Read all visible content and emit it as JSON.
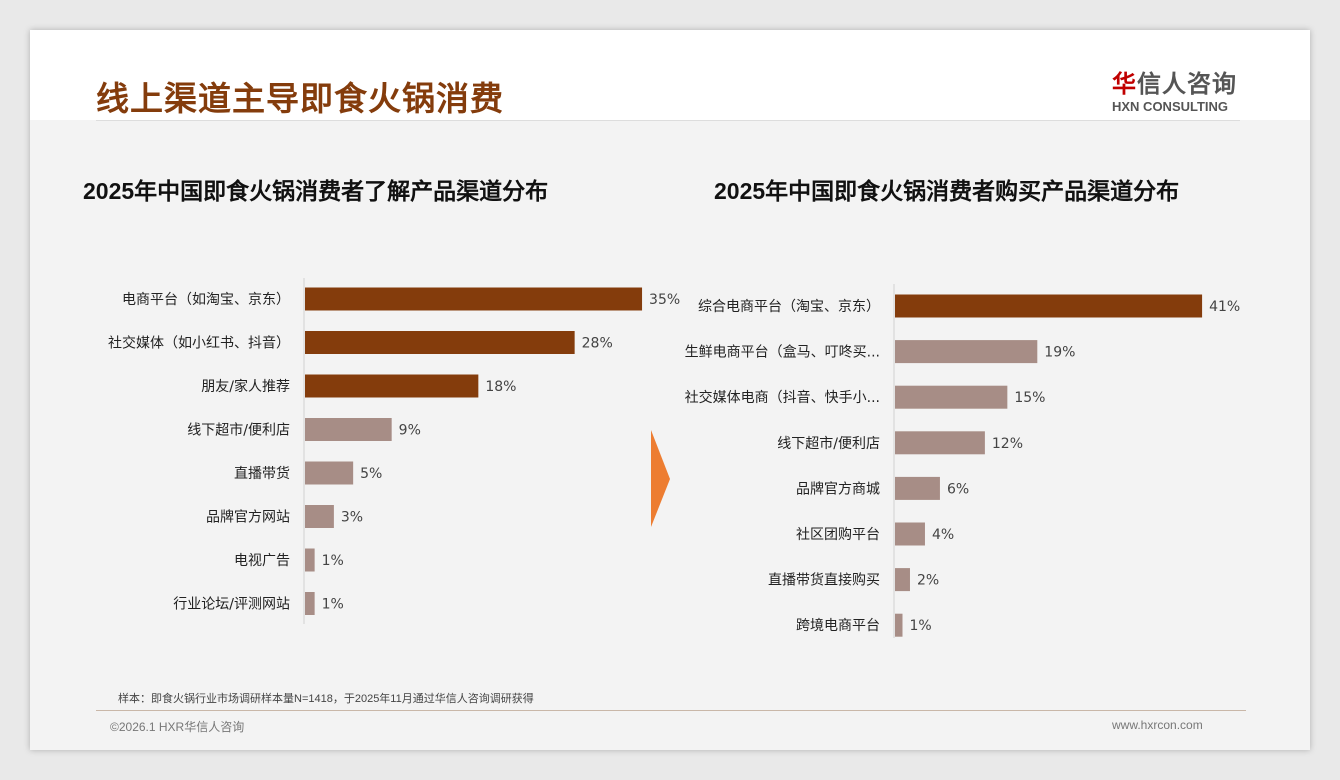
{
  "header": {
    "title": "线上渠道主导即食火锅消费",
    "logo_cn_mark": "华",
    "logo_cn_rest": "信人咨询",
    "logo_en": "HXN CONSULTING"
  },
  "footer": {
    "note": "样本：即食火锅行业市场调研样本量N=1418，于2025年11月通过华信人咨询调研获得",
    "copyright": "©2026.1 HXR华信人咨询",
    "url": "www.hxrcon.com"
  },
  "colors": {
    "dark": "#843c0c",
    "light": "#a78d86",
    "arrow": "#ed7d31"
  },
  "chart_data": [
    {
      "type": "bar",
      "orientation": "horizontal",
      "title": "2025年中国即食火锅消费者了解产品渠道分布",
      "categories": [
        "电商平台（如淘宝、京东）",
        "社交媒体（如小红书、抖音）",
        "朋友/家人推荐",
        "线下超市/便利店",
        "直播带货",
        "品牌官方网站",
        "电视广告",
        "行业论坛/评测网站"
      ],
      "values": [
        35,
        28,
        18,
        9,
        5,
        3,
        1,
        1
      ],
      "unit": "%",
      "highlight_top": 3
    },
    {
      "type": "bar",
      "orientation": "horizontal",
      "title": "2025年中国即食火锅消费者购买产品渠道分布",
      "categories": [
        "综合电商平台（淘宝、京东）",
        "生鲜电商平台（盒马、叮咚买...",
        "社交媒体电商（抖音、快手小...",
        "线下超市/便利店",
        "品牌官方商城",
        "社区团购平台",
        "直播带货直接购买",
        "跨境电商平台"
      ],
      "values": [
        41,
        19,
        15,
        12,
        6,
        4,
        2,
        1
      ],
      "unit": "%",
      "highlight_top": 1
    }
  ]
}
